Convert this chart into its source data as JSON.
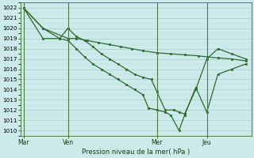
{
  "title": "Pression niveau de la mer( hPa )",
  "bg_color": "#cceaea",
  "grid_color": "#b8d8d8",
  "line_color": "#2d6a2d",
  "marker_color": "#2d6a2d",
  "ylim": [
    1009.5,
    1022.5
  ],
  "yticks": [
    1010,
    1011,
    1012,
    1013,
    1014,
    1015,
    1016,
    1017,
    1018,
    1019,
    1020,
    1021,
    1022
  ],
  "xtick_labels": [
    "Mar",
    "Ven",
    "Mer",
    "Jeu"
  ],
  "xtick_positions": [
    0,
    16,
    48,
    66
  ],
  "xlim": [
    -1,
    82
  ],
  "vline_positions": [
    0,
    16,
    48,
    66
  ],
  "line1_x": [
    0,
    7,
    16,
    19,
    23,
    27,
    31,
    35,
    39,
    43,
    48,
    53,
    58,
    63,
    66,
    70,
    75,
    80
  ],
  "line1_y": [
    1022,
    1020,
    1019,
    1019,
    1018.8,
    1018.6,
    1018.4,
    1018.2,
    1018.0,
    1017.8,
    1017.6,
    1017.5,
    1017.4,
    1017.3,
    1017.2,
    1017.1,
    1017.0,
    1016.8
  ],
  "line2_x": [
    0,
    7,
    13,
    16,
    19,
    22,
    25,
    28,
    31,
    34,
    37,
    40,
    43,
    46,
    48,
    51,
    54,
    56,
    58,
    62,
    66,
    70,
    75,
    80
  ],
  "line2_y": [
    1022,
    1020,
    1019,
    1020,
    1019.2,
    1018.8,
    1018.2,
    1017.5,
    1017.0,
    1016.5,
    1016.0,
    1015.5,
    1015.2,
    1015.0,
    1013.8,
    1012.0,
    1012.0,
    1011.8,
    1011.6,
    1014.0,
    1017.0,
    1018.0,
    1017.5,
    1017.0
  ],
  "line3_x": [
    0,
    7,
    13,
    16,
    19,
    22,
    25,
    28,
    31,
    34,
    37,
    40,
    43,
    45,
    48,
    51,
    53,
    56,
    58,
    62,
    66,
    70,
    75,
    80
  ],
  "line3_y": [
    1022,
    1019,
    1019,
    1018.8,
    1018.0,
    1017.2,
    1016.5,
    1016.0,
    1015.5,
    1015.0,
    1014.5,
    1014.0,
    1013.5,
    1012.2,
    1012.0,
    1011.8,
    1011.5,
    1010.0,
    1011.5,
    1014.2,
    1011.8,
    1015.5,
    1016.0,
    1016.5
  ]
}
